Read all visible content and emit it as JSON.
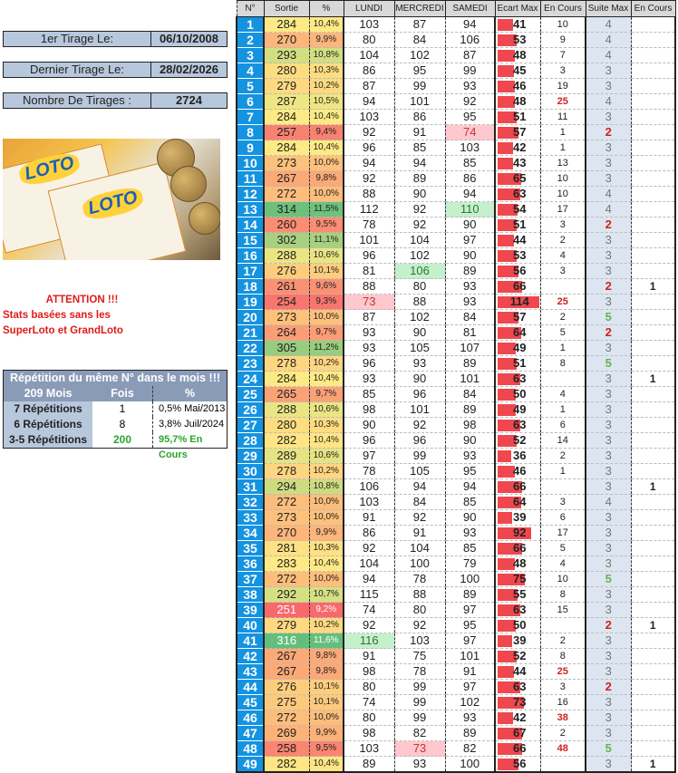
{
  "info": [
    {
      "label": "1er Tirage Le:",
      "value": "06/10/2008"
    },
    {
      "label": "Dernier Tirage Le:",
      "value": "28/02/2026"
    },
    {
      "label": "Nombre De Tirages :",
      "value": "2724"
    }
  ],
  "image": {
    "logo_text": "LOTO",
    "alt": "tickets loto et billets"
  },
  "warning": [
    "ATTENTION !!!",
    "Stats basées sans les",
    "SuperLoto et GrandLoto"
  ],
  "repetition": {
    "title": "Répétition du même N° dans le mois !!!",
    "headers": [
      "209 Mois",
      "Fois",
      "%"
    ],
    "rows": [
      [
        "7 Répétitions",
        "1",
        "0,5%  Mai/2013"
      ],
      [
        "6 Répétitions",
        "8",
        "3,8%  Juil/2024"
      ],
      [
        "3-5 Répétitions",
        "200",
        "95,7%  En Cours"
      ]
    ]
  },
  "colors": {
    "number_bg": "#1493e0",
    "ecart_bar": "#f0474e",
    "low": "#f8696b",
    "mid": "#ffeb84",
    "high": "#63be7b",
    "min_highlight": "#ffc7ce",
    "max_highlight": "#c6efce",
    "suite_bg": "#dde6f0"
  },
  "table": {
    "headers": [
      "N°",
      "Sortie",
      "%",
      "LUNDI",
      "MERCREDI",
      "SAMEDI",
      "Ecart Max",
      "En Cours",
      "Suite Max",
      "En Cours"
    ],
    "rows": [
      [
        1,
        284,
        "10,4%",
        103,
        87,
        94,
        41,
        10,
        4,
        ""
      ],
      [
        2,
        270,
        "9,9%",
        80,
        84,
        106,
        53,
        9,
        4,
        ""
      ],
      [
        3,
        293,
        "10,8%",
        104,
        102,
        87,
        48,
        7,
        4,
        ""
      ],
      [
        4,
        280,
        "10,3%",
        86,
        95,
        99,
        45,
        3,
        3,
        ""
      ],
      [
        5,
        279,
        "10,2%",
        87,
        99,
        93,
        46,
        19,
        3,
        ""
      ],
      [
        6,
        287,
        "10,5%",
        94,
        101,
        92,
        48,
        25,
        4,
        ""
      ],
      [
        7,
        284,
        "10,4%",
        103,
        86,
        95,
        51,
        11,
        3,
        ""
      ],
      [
        8,
        257,
        "9,4%",
        92,
        91,
        74,
        57,
        1,
        2,
        ""
      ],
      [
        9,
        284,
        "10,4%",
        96,
        85,
        103,
        42,
        1,
        3,
        ""
      ],
      [
        10,
        273,
        "10,0%",
        94,
        94,
        85,
        43,
        13,
        3,
        ""
      ],
      [
        11,
        267,
        "9,8%",
        92,
        89,
        86,
        65,
        10,
        3,
        ""
      ],
      [
        12,
        272,
        "10,0%",
        88,
        90,
        94,
        63,
        10,
        4,
        ""
      ],
      [
        13,
        314,
        "11,5%",
        112,
        92,
        110,
        54,
        17,
        4,
        ""
      ],
      [
        14,
        260,
        "9,5%",
        78,
        92,
        90,
        51,
        3,
        2,
        ""
      ],
      [
        15,
        302,
        "11,1%",
        101,
        104,
        97,
        44,
        2,
        3,
        ""
      ],
      [
        16,
        288,
        "10,6%",
        96,
        102,
        90,
        53,
        4,
        3,
        ""
      ],
      [
        17,
        276,
        "10,1%",
        81,
        106,
        89,
        56,
        3,
        3,
        ""
      ],
      [
        18,
        261,
        "9,6%",
        88,
        80,
        93,
        66,
        "",
        2,
        1
      ],
      [
        19,
        254,
        "9,3%",
        73,
        88,
        93,
        114,
        25,
        3,
        ""
      ],
      [
        20,
        273,
        "10,0%",
        87,
        102,
        84,
        57,
        2,
        5,
        ""
      ],
      [
        21,
        264,
        "9,7%",
        93,
        90,
        81,
        64,
        5,
        2,
        ""
      ],
      [
        22,
        305,
        "11,2%",
        93,
        105,
        107,
        49,
        1,
        3,
        ""
      ],
      [
        23,
        278,
        "10,2%",
        96,
        93,
        89,
        51,
        8,
        5,
        ""
      ],
      [
        24,
        284,
        "10,4%",
        93,
        90,
        101,
        63,
        "",
        3,
        1
      ],
      [
        25,
        265,
        "9,7%",
        85,
        96,
        84,
        50,
        4,
        3,
        ""
      ],
      [
        26,
        288,
        "10,6%",
        98,
        101,
        89,
        49,
        1,
        3,
        ""
      ],
      [
        27,
        280,
        "10,3%",
        90,
        92,
        98,
        63,
        6,
        3,
        ""
      ],
      [
        28,
        282,
        "10,4%",
        96,
        96,
        90,
        52,
        14,
        3,
        ""
      ],
      [
        29,
        289,
        "10,6%",
        97,
        99,
        93,
        36,
        2,
        3,
        ""
      ],
      [
        30,
        278,
        "10,2%",
        78,
        105,
        95,
        46,
        1,
        3,
        ""
      ],
      [
        31,
        294,
        "10,8%",
        106,
        94,
        94,
        66,
        "",
        3,
        1
      ],
      [
        32,
        272,
        "10,0%",
        103,
        84,
        85,
        64,
        3,
        4,
        ""
      ],
      [
        33,
        273,
        "10,0%",
        91,
        92,
        90,
        39,
        6,
        3,
        ""
      ],
      [
        34,
        270,
        "9,9%",
        86,
        91,
        93,
        92,
        17,
        3,
        ""
      ],
      [
        35,
        281,
        "10,3%",
        92,
        104,
        85,
        66,
        5,
        3,
        ""
      ],
      [
        36,
        283,
        "10,4%",
        104,
        100,
        79,
        48,
        4,
        3,
        ""
      ],
      [
        37,
        272,
        "10,0%",
        94,
        78,
        100,
        75,
        10,
        5,
        ""
      ],
      [
        38,
        292,
        "10,7%",
        115,
        88,
        89,
        55,
        8,
        3,
        ""
      ],
      [
        39,
        251,
        "9,2%",
        74,
        80,
        97,
        63,
        15,
        3,
        ""
      ],
      [
        40,
        279,
        "10,2%",
        92,
        92,
        95,
        50,
        "",
        2,
        1
      ],
      [
        41,
        316,
        "11,6%",
        116,
        103,
        97,
        39,
        2,
        3,
        ""
      ],
      [
        42,
        267,
        "9,8%",
        91,
        75,
        101,
        52,
        8,
        3,
        ""
      ],
      [
        43,
        267,
        "9,8%",
        98,
        78,
        91,
        44,
        25,
        3,
        ""
      ],
      [
        44,
        276,
        "10,1%",
        80,
        99,
        97,
        63,
        3,
        2,
        ""
      ],
      [
        45,
        275,
        "10,1%",
        74,
        99,
        102,
        73,
        16,
        3,
        ""
      ],
      [
        46,
        272,
        "10,0%",
        80,
        99,
        93,
        42,
        38,
        3,
        ""
      ],
      [
        47,
        269,
        "9,9%",
        98,
        82,
        89,
        67,
        2,
        3,
        ""
      ],
      [
        48,
        258,
        "9,5%",
        103,
        73,
        82,
        66,
        48,
        5,
        ""
      ],
      [
        49,
        282,
        "10,4%",
        89,
        93,
        100,
        56,
        "",
        3,
        1
      ]
    ]
  }
}
